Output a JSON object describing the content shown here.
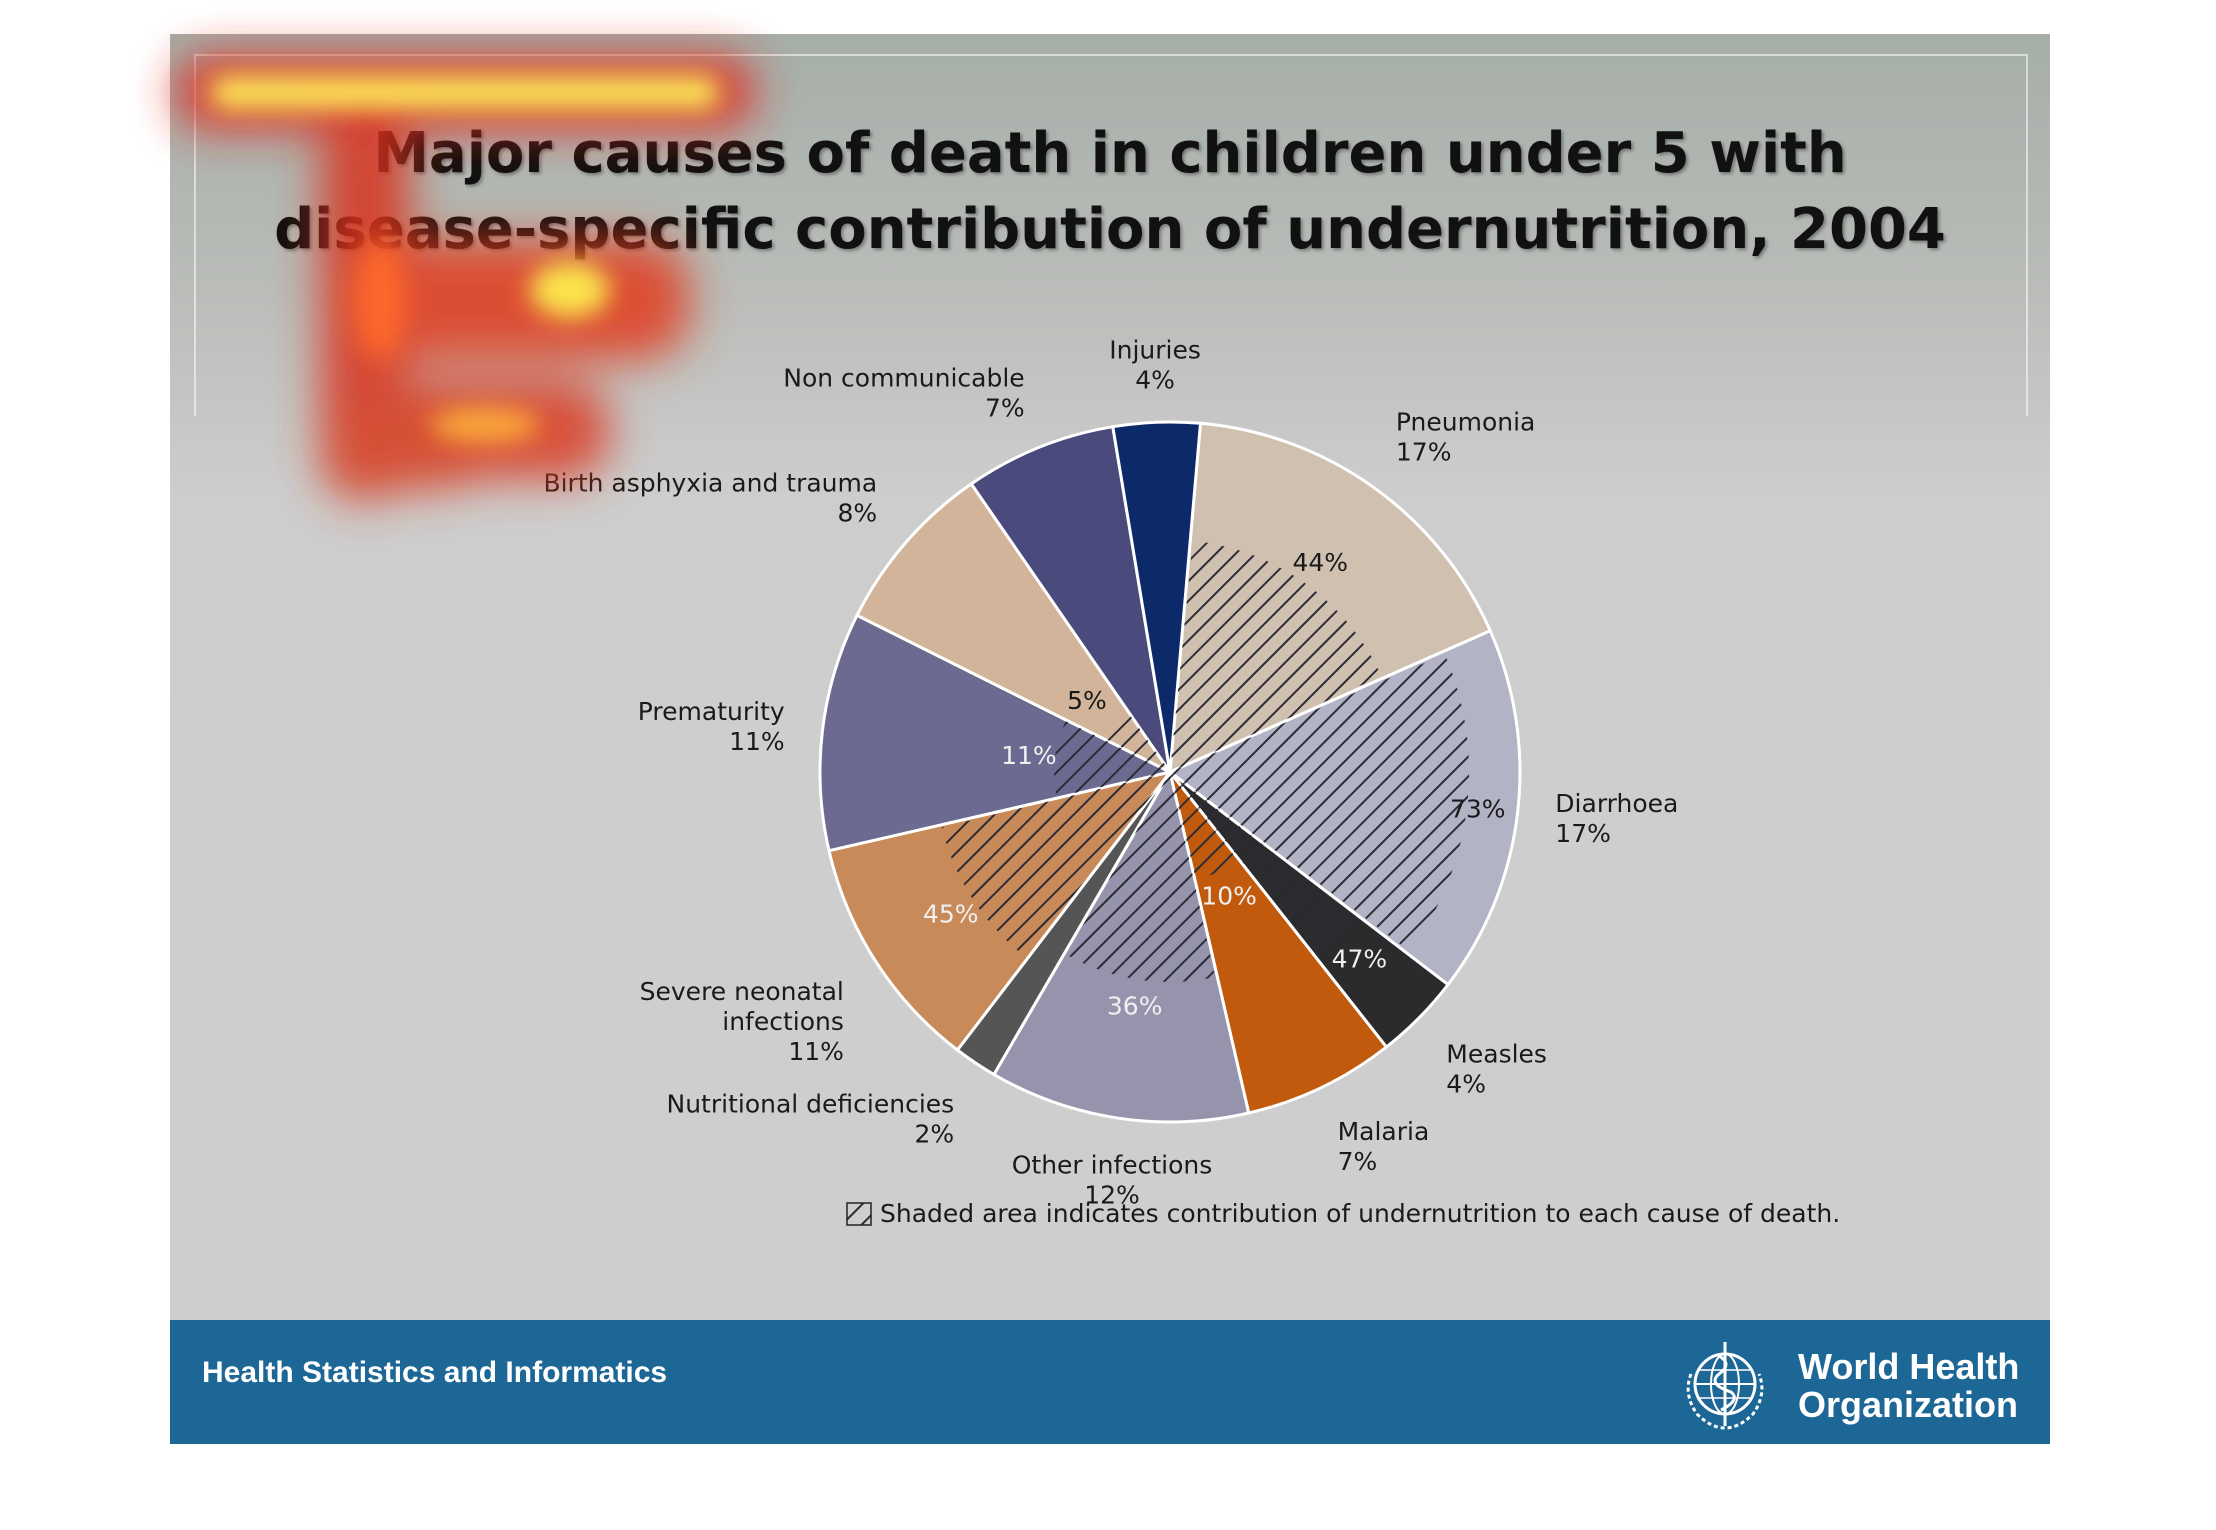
{
  "slide": {
    "title_line1": "Major causes of death in children under 5 with",
    "title_line2": "disease-specific contribution of undernutrition, 2004"
  },
  "footer": {
    "left_text": "Health Statistics and Informatics",
    "org_line1": "World Health",
    "org_line2": "Organization",
    "logo_icon": "who-emblem-icon",
    "background_color": "#1c6795"
  },
  "chart_data": {
    "type": "pie",
    "title": "Major causes of death in children under 5 with disease-specific contribution of undernutrition, 2004",
    "slices": [
      {
        "name": "Pneumonia",
        "value": 17,
        "label": "17%",
        "undernutrition": "44%",
        "undernutrition_share": 0.44,
        "color": "#cfc0b0"
      },
      {
        "name": "Diarrhoea",
        "value": 17,
        "label": "17%",
        "undernutrition": "73%",
        "undernutrition_share": 0.73,
        "color": "#b3b3c6"
      },
      {
        "name": "Measles",
        "value": 4,
        "label": "4%",
        "undernutrition": "47%",
        "undernutrition_share": 0.47,
        "color": "#2b2b2e"
      },
      {
        "name": "Malaria",
        "value": 7,
        "label": "7%",
        "undernutrition": "10%",
        "undernutrition_share": 0.1,
        "color": "#c15a0c"
      },
      {
        "name": "Other infections",
        "value": 12,
        "label": "12%",
        "undernutrition": "36%",
        "undernutrition_share": 0.36,
        "color": "#9594ac"
      },
      {
        "name": "Nutritional deficiencies",
        "value": 2,
        "label": "2%",
        "undernutrition": "",
        "undernutrition_share": 0,
        "color": "#555555"
      },
      {
        "name": "Severe neonatal infections",
        "value": 11,
        "label": "11%",
        "undernutrition": "45%",
        "undernutrition_share": 0.45,
        "color": "#c88a58"
      },
      {
        "name": "Prematurity",
        "value": 11,
        "label": "11%",
        "undernutrition": "11%",
        "undernutrition_share": 0.11,
        "color": "#6c6a90"
      },
      {
        "name": "Birth asphyxia and trauma",
        "value": 8,
        "label": "8%",
        "undernutrition": "5%",
        "undernutrition_share": 0.05,
        "color": "#d2b49a"
      },
      {
        "name": "Non communicable",
        "value": 7,
        "label": "7%",
        "undernutrition": "",
        "undernutrition_share": 0,
        "color": "#4a4a7c"
      },
      {
        "name": "Injuries",
        "value": 4,
        "label": "4%",
        "undernutrition": "",
        "undernutrition_share": 0,
        "color": "#0c2a6a"
      }
    ],
    "legend_note": "Shaded area indicates contribution of undernutrition to each cause of death."
  }
}
